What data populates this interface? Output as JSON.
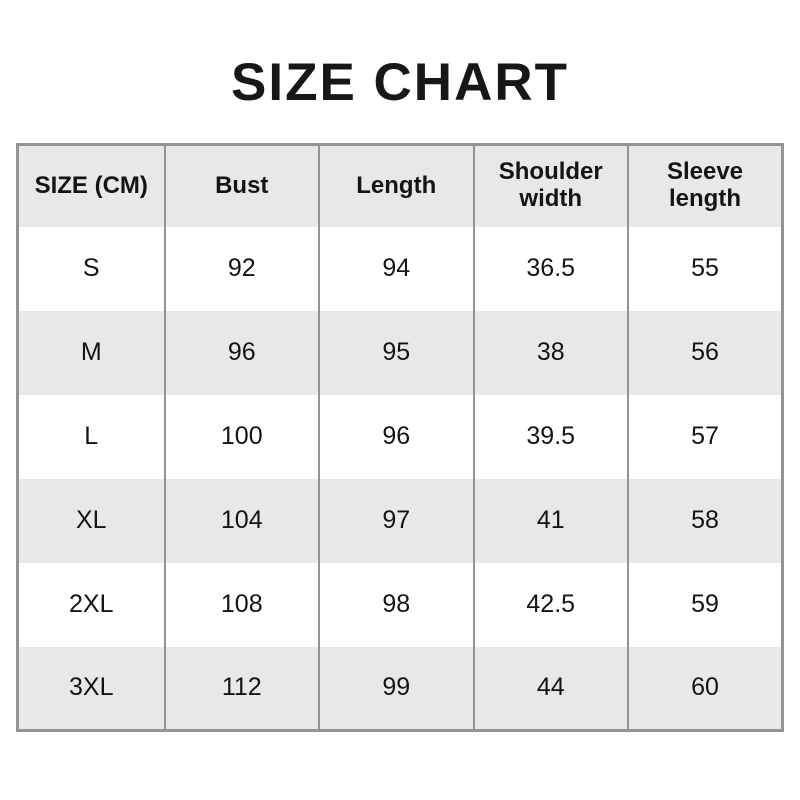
{
  "title": "SIZE CHART",
  "colors": {
    "border": "#949494",
    "header_bg": "#e8e8e8",
    "row_alt_bg": "#e8e8e8",
    "row_bg": "#ffffff",
    "text": "#141414"
  },
  "chart_data": {
    "type": "table",
    "title": "SIZE CHART",
    "unit": "CM",
    "columns": [
      "SIZE (CM)",
      "Bust",
      "Length",
      "Shoulder width",
      "Sleeve length"
    ],
    "rows": [
      [
        "S",
        "92",
        "94",
        "36.5",
        "55"
      ],
      [
        "M",
        "96",
        "95",
        "38",
        "56"
      ],
      [
        "L",
        "100",
        "96",
        "39.5",
        "57"
      ],
      [
        "XL",
        "104",
        "97",
        "41",
        "58"
      ],
      [
        "2XL",
        "108",
        "98",
        "42.5",
        "59"
      ],
      [
        "3XL",
        "112",
        "99",
        "44",
        "60"
      ]
    ]
  }
}
